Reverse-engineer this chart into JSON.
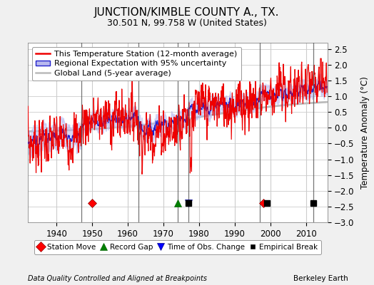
{
  "title": "JUNCTION/KIMBLE COUNTY A., TX.",
  "subtitle": "30.501 N, 99.758 W (United States)",
  "ylabel": "Temperature Anomaly (°C)",
  "xlabel_note": "Data Quality Controlled and Aligned at Breakpoints",
  "xlabel_credit": "Berkeley Earth",
  "ylim": [
    -3.0,
    2.7
  ],
  "yticks": [
    -3,
    -2.5,
    -2,
    -1.5,
    -1,
    -0.5,
    0,
    0.5,
    1,
    1.5,
    2,
    2.5
  ],
  "xlim": [
    1932,
    2016
  ],
  "xticks": [
    1940,
    1950,
    1960,
    1970,
    1980,
    1990,
    2000,
    2010
  ],
  "bg_color": "#f0f0f0",
  "plot_bg_color": "#ffffff",
  "red_color": "#ee0000",
  "blue_color": "#2222cc",
  "blue_fill_color": "#b8b8ee",
  "gray_color": "#bbbbbb",
  "grid_color": "#cccccc",
  "event_line_color": "#555555",
  "vertical_event_lines": [
    1947,
    1963,
    1974,
    1977,
    1997,
    2012
  ],
  "station_moves": [
    1950,
    1998
  ],
  "record_gaps": [
    1974
  ],
  "obs_changes": [
    1977
  ],
  "empirical_breaks": [
    1977,
    1999,
    2012
  ],
  "title_fontsize": 11,
  "subtitle_fontsize": 9,
  "legend_fontsize": 8,
  "tick_fontsize": 8.5,
  "ylabel_fontsize": 8.5,
  "marker_y": -2.4
}
